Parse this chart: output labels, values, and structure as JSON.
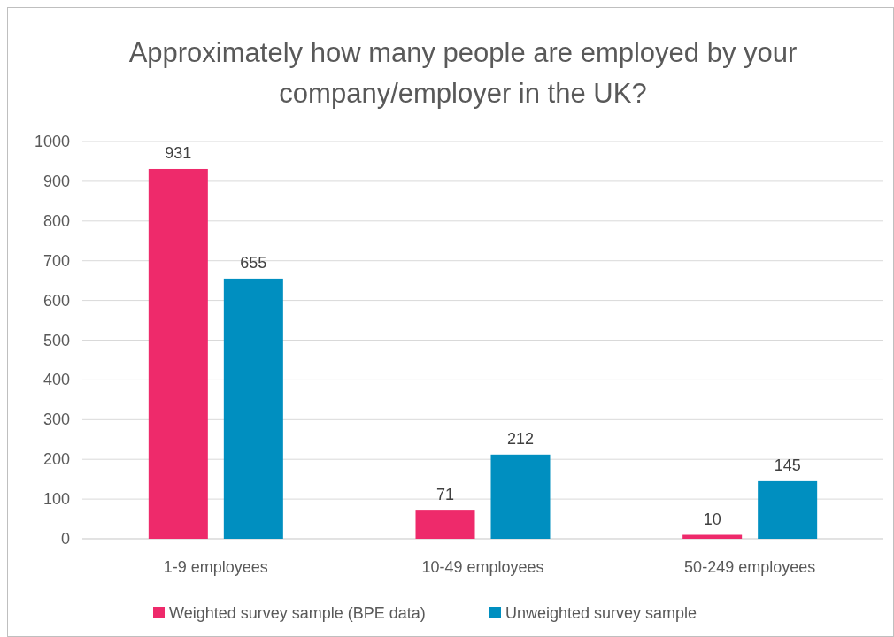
{
  "chart_data": {
    "type": "bar",
    "title": "Approximately how many people are employed by your company/employer in the UK?",
    "categories": [
      "1-9 employees",
      "10-49 employees",
      "50-249 employees"
    ],
    "series": [
      {
        "name": "Weighted survey sample (BPE data)",
        "color": "#ee2a6b",
        "values": [
          931,
          71,
          10
        ]
      },
      {
        "name": "Unweighted survey sample",
        "color": "#008fc0",
        "values": [
          655,
          212,
          145
        ]
      }
    ],
    "ylim": [
      0,
      1000
    ],
    "yticks": [
      0,
      100,
      200,
      300,
      400,
      500,
      600,
      700,
      800,
      900,
      1000
    ],
    "grid": "y",
    "legend": "bottom",
    "data_labels": true
  }
}
